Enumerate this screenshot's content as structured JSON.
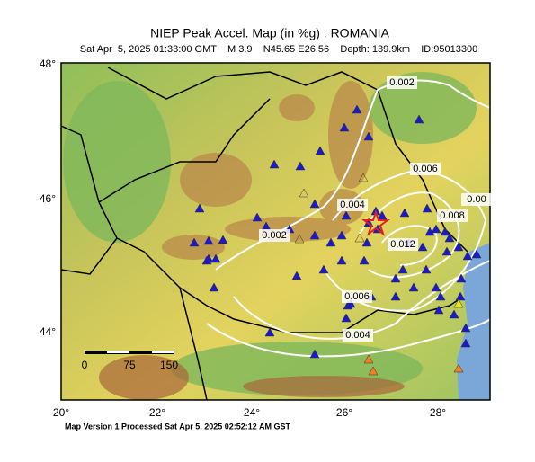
{
  "map": {
    "title": "NIEP Peak Accel. Map (in %g) : ROMANIA",
    "subtitle": "Sat Apr  5, 2025 01:33:00 GMT    M 3.9    N45.65 E26.56    Depth: 139.9km    ID:95013300",
    "lat_labels": [
      "48°",
      "46°",
      "44°"
    ],
    "lon_labels": [
      "20°",
      "22°",
      "24°",
      "26°",
      "28°"
    ],
    "contour_labels": [
      "0.002",
      "0.002",
      "0.004",
      "0.004",
      "0.006",
      "0.006",
      "0.008",
      "0.012",
      "0.00"
    ],
    "scale_labels": [
      "0",
      "75",
      "150"
    ],
    "footer": "Map Version 1 Processed Sat Apr  5, 2025 02:52:12 AM GST"
  }
}
